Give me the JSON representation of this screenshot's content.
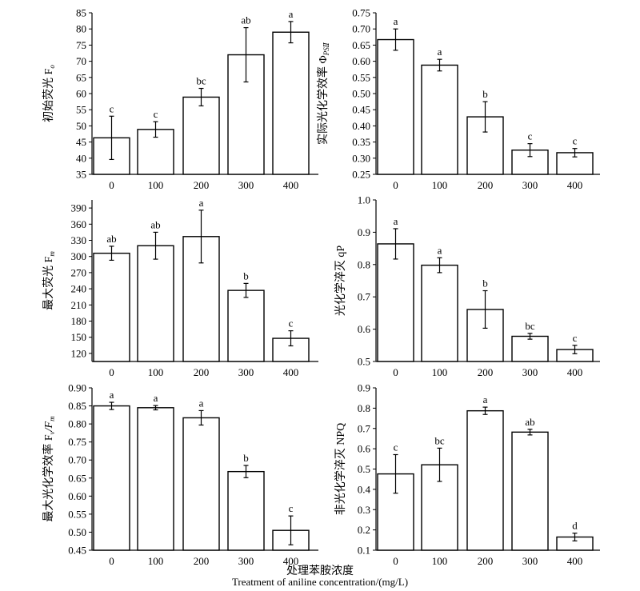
{
  "figure": {
    "xlabel_cn": "处理苯胺浓度",
    "xlabel_en": "Treatment of aniline concentration/(mg/L)"
  },
  "chart_data": [
    {
      "type": "bar",
      "ylabel": "初始荧光 F",
      "ylabel_sub": "o",
      "categories": [
        "0",
        "100",
        "200",
        "300",
        "400"
      ],
      "values": [
        46.3,
        48.9,
        58.9,
        72.0,
        79.0
      ],
      "errors": [
        6.7,
        2.4,
        2.7,
        8.4,
        3.3
      ],
      "letters": [
        "c",
        "c",
        "bc",
        "ab",
        "a"
      ],
      "ylim": [
        35,
        85
      ],
      "yticks": [
        "35",
        "40",
        "45",
        "50",
        "55",
        "60",
        "65",
        "70",
        "75",
        "80",
        "85"
      ]
    },
    {
      "type": "bar",
      "ylabel": "实际光化学效率 Φ",
      "ylabel_sub": "PSⅡ",
      "categories": [
        "0",
        "100",
        "200",
        "300",
        "400"
      ],
      "values": [
        0.667,
        0.588,
        0.428,
        0.325,
        0.317
      ],
      "errors": [
        0.033,
        0.018,
        0.047,
        0.02,
        0.013
      ],
      "letters": [
        "a",
        "a",
        "b",
        "c",
        "c"
      ],
      "ylim": [
        0.25,
        0.75
      ],
      "yticks": [
        "0.25",
        "0.30",
        "0.35",
        "0.40",
        "0.45",
        "0.50",
        "0.55",
        "0.60",
        "0.65",
        "0.70",
        "0.75"
      ]
    },
    {
      "type": "bar",
      "ylabel": "最大荧光 F",
      "ylabel_sub": "m",
      "categories": [
        "0",
        "100",
        "200",
        "300",
        "400"
      ],
      "values": [
        306,
        320,
        337,
        237,
        148
      ],
      "errors": [
        13,
        25,
        49,
        13,
        14
      ],
      "letters": [
        "ab",
        "ab",
        "a",
        "b",
        "c"
      ],
      "ylim": [
        105,
        405
      ],
      "yticks": [
        "120",
        "150",
        "180",
        "210",
        "240",
        "270",
        "300",
        "330",
        "360",
        "390"
      ]
    },
    {
      "type": "bar",
      "ylabel": "光化学淬灭 qP",
      "ylabel_sub": "",
      "categories": [
        "0",
        "100",
        "200",
        "300",
        "400"
      ],
      "values": [
        0.864,
        0.798,
        0.661,
        0.578,
        0.537
      ],
      "errors": [
        0.047,
        0.023,
        0.058,
        0.009,
        0.013
      ],
      "letters": [
        "a",
        "a",
        "b",
        "bc",
        "c"
      ],
      "ylim": [
        0.5,
        1.0
      ],
      "yticks": [
        "0.5",
        "0.6",
        "0.7",
        "0.8",
        "0.9",
        "1.0"
      ]
    },
    {
      "type": "bar",
      "ylabel": "最大光化学效率 F",
      "ylabel_sub": "v",
      "ylabel_tail": "/F",
      "ylabel_tail_sub": "m",
      "categories": [
        "0",
        "100",
        "200",
        "300",
        "400"
      ],
      "values": [
        0.85,
        0.845,
        0.817,
        0.668,
        0.505
      ],
      "errors": [
        0.01,
        0.006,
        0.02,
        0.017,
        0.04
      ],
      "letters": [
        "a",
        "a",
        "a",
        "b",
        "c"
      ],
      "ylim": [
        0.45,
        0.9
      ],
      "yticks": [
        "0.45",
        "0.50",
        "0.55",
        "0.60",
        "0.65",
        "0.70",
        "0.75",
        "0.80",
        "0.85",
        "0.90"
      ]
    },
    {
      "type": "bar",
      "ylabel": "非光化学淬灭 NPQ",
      "ylabel_sub": "",
      "categories": [
        "0",
        "100",
        "200",
        "300",
        "400"
      ],
      "values": [
        0.476,
        0.521,
        0.787,
        0.682,
        0.165
      ],
      "errors": [
        0.095,
        0.082,
        0.018,
        0.014,
        0.019
      ],
      "letters": [
        "c",
        "bc",
        "a",
        "ab",
        "d"
      ],
      "ylim": [
        0.1,
        0.9
      ],
      "yticks": [
        "0.1",
        "0.2",
        "0.3",
        "0.4",
        "0.5",
        "0.6",
        "0.7",
        "0.8",
        "0.9"
      ]
    }
  ]
}
